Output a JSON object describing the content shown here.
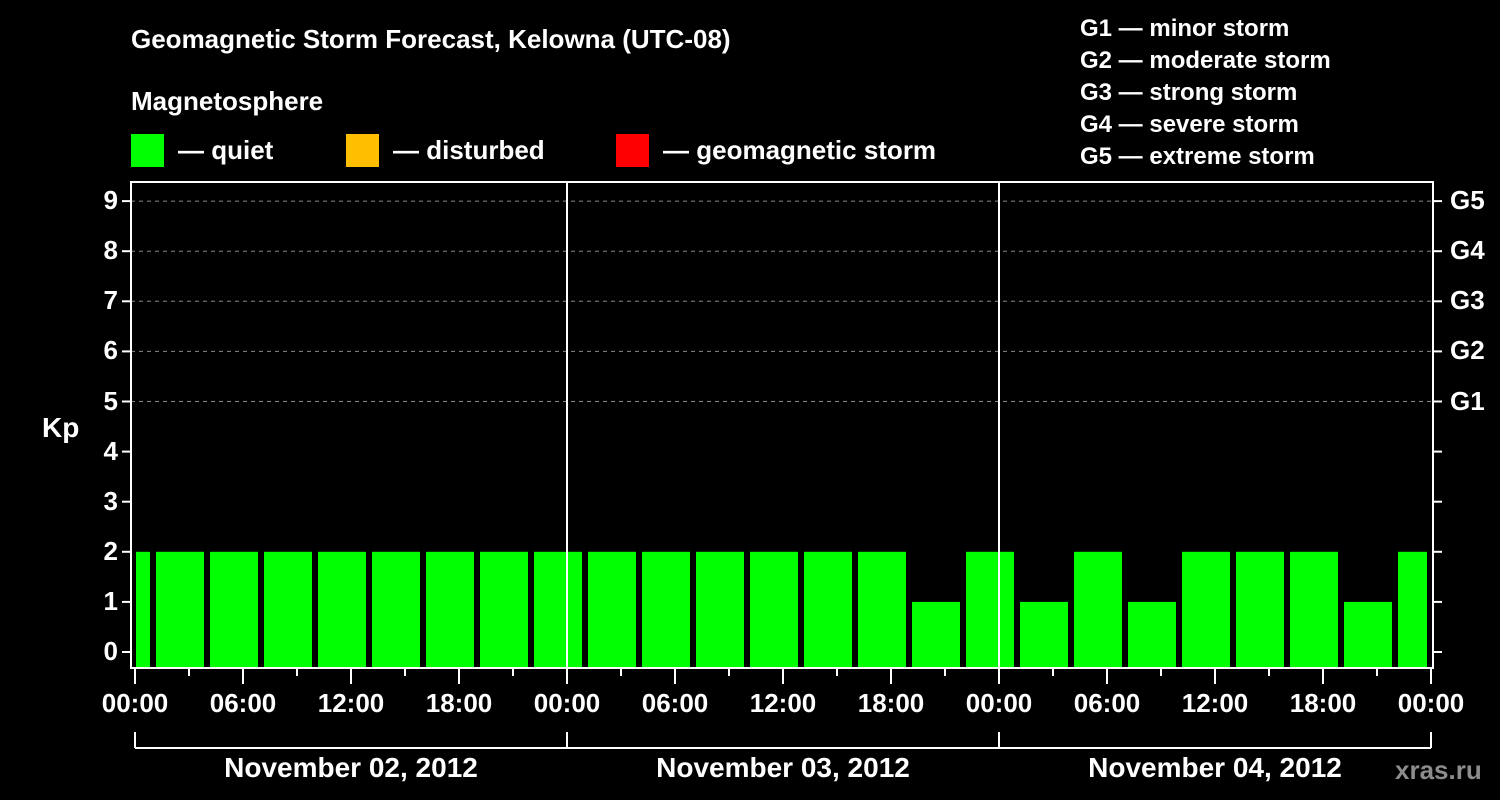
{
  "header": {
    "title": "Geomagnetic Storm Forecast, Kelowna (UTC-08)",
    "subtitle": "Magnetosphere"
  },
  "legend": [
    {
      "label": "— quiet",
      "color": "#00ff00"
    },
    {
      "label": "— disturbed",
      "color": "#ffbf00"
    },
    {
      "label": "— geomagnetic storm",
      "color": "#ff0000"
    }
  ],
  "g_legend": [
    "G1 — minor storm",
    "G2 — moderate storm",
    "G3 — strong storm",
    "G4 — severe storm",
    "G5 — extreme storm"
  ],
  "axes": {
    "ylabel": "Kp",
    "y_ticks": [
      "0",
      "1",
      "2",
      "3",
      "4",
      "5",
      "6",
      "7",
      "8",
      "9"
    ],
    "g_ticks": [
      {
        "kp": 5,
        "label": "G1"
      },
      {
        "kp": 6,
        "label": "G2"
      },
      {
        "kp": 7,
        "label": "G3"
      },
      {
        "kp": 8,
        "label": "G4"
      },
      {
        "kp": 9,
        "label": "G5"
      }
    ],
    "x_ticks": [
      "00:00",
      "06:00",
      "12:00",
      "18:00",
      "00:00",
      "06:00",
      "12:00",
      "18:00",
      "00:00",
      "06:00",
      "12:00",
      "18:00",
      "00:00"
    ],
    "dates": [
      "November 02, 2012",
      "November 03, 2012",
      "November 04, 2012"
    ]
  },
  "watermark": "xras.ru",
  "chart_data": {
    "type": "bar",
    "title": "Geomagnetic Storm Forecast, Kelowna (UTC-08)",
    "subtitle": "Magnetosphere",
    "xlabel": "",
    "ylabel": "Kp",
    "ylim": [
      0,
      9
    ],
    "grid": "dashed horizontal at Kp 5-9",
    "bin_hours": 3,
    "bin_offset_hours": 1,
    "start": "November 02, 2012 00:00",
    "end": "November 05, 2012 00:00",
    "series": [
      {
        "name": "Kp",
        "bars": [
          {
            "start_h": 0,
            "end_h": 1,
            "value": 2
          },
          {
            "start_h": 1,
            "end_h": 4,
            "value": 2
          },
          {
            "start_h": 4,
            "end_h": 7,
            "value": 2
          },
          {
            "start_h": 7,
            "end_h": 10,
            "value": 2
          },
          {
            "start_h": 10,
            "end_h": 13,
            "value": 2
          },
          {
            "start_h": 13,
            "end_h": 16,
            "value": 2
          },
          {
            "start_h": 16,
            "end_h": 19,
            "value": 2
          },
          {
            "start_h": 19,
            "end_h": 22,
            "value": 2
          },
          {
            "start_h": 22,
            "end_h": 25,
            "value": 2
          },
          {
            "start_h": 25,
            "end_h": 28,
            "value": 2
          },
          {
            "start_h": 28,
            "end_h": 31,
            "value": 2
          },
          {
            "start_h": 31,
            "end_h": 34,
            "value": 2
          },
          {
            "start_h": 34,
            "end_h": 37,
            "value": 2
          },
          {
            "start_h": 37,
            "end_h": 40,
            "value": 2
          },
          {
            "start_h": 40,
            "end_h": 43,
            "value": 2
          },
          {
            "start_h": 43,
            "end_h": 46,
            "value": 1
          },
          {
            "start_h": 46,
            "end_h": 49,
            "value": 2
          },
          {
            "start_h": 49,
            "end_h": 52,
            "value": 1
          },
          {
            "start_h": 52,
            "end_h": 55,
            "value": 2
          },
          {
            "start_h": 55,
            "end_h": 58,
            "value": 1
          },
          {
            "start_h": 58,
            "end_h": 61,
            "value": 2
          },
          {
            "start_h": 61,
            "end_h": 64,
            "value": 2
          },
          {
            "start_h": 64,
            "end_h": 67,
            "value": 2
          },
          {
            "start_h": 67,
            "end_h": 70,
            "value": 1
          },
          {
            "start_h": 70,
            "end_h": 72,
            "value": 2
          }
        ],
        "status": "quiet",
        "color": "#00ff00"
      }
    ],
    "legend": [
      "quiet",
      "disturbed",
      "geomagnetic storm"
    ],
    "right_axis": {
      "G1": 5,
      "G2": 6,
      "G3": 7,
      "G4": 8,
      "G5": 9
    }
  }
}
